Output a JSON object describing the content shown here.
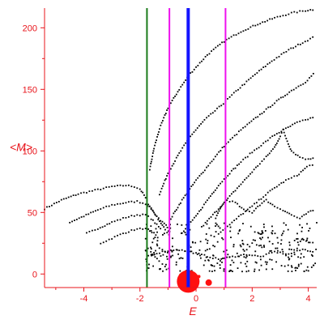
{
  "chart_data": {
    "type": "scatter",
    "title": "",
    "xlabel": "E",
    "ylabel": "<M>",
    "xlim": [
      -5.4,
      4.3
    ],
    "ylim": [
      -11,
      216
    ],
    "x_ticks": [
      -4,
      -2,
      0,
      2,
      4
    ],
    "x_tick_labels": [
      "-4",
      "-2",
      "0",
      "2",
      "4"
    ],
    "y_ticks": [
      0,
      50,
      100,
      150,
      200
    ],
    "y_tick_labels": [
      "0",
      "50",
      "100",
      "150",
      "200"
    ],
    "axis_color": "#e8141b",
    "point_color": "#000000",
    "vertical_lines": [
      {
        "x": -1.75,
        "color": "#1a7a1a"
      },
      {
        "x": -0.95,
        "color": "#ee10ee"
      },
      {
        "x": -0.28,
        "color": "#1414ff"
      },
      {
        "x": 1.05,
        "color": "#ee10ee"
      }
    ],
    "series": [
      {
        "values": [
          [
            -5.4,
            53
          ],
          [
            -4.8,
            60
          ],
          [
            -4.2,
            65
          ],
          [
            -3.6,
            68
          ],
          [
            -3.0,
            71
          ],
          [
            -2.5,
            72
          ],
          [
            -2.2,
            71
          ],
          [
            -2.0,
            69
          ],
          [
            -1.85,
            64
          ],
          [
            -1.7,
            57
          ],
          [
            -1.5,
            50
          ],
          [
            -1.3,
            43
          ],
          [
            -1.1,
            36
          ],
          [
            -0.9,
            30
          ]
        ]
      },
      {
        "values": [
          [
            -4.5,
            42
          ],
          [
            -4.0,
            47
          ],
          [
            -3.5,
            52
          ],
          [
            -3.0,
            56
          ],
          [
            -2.5,
            58
          ],
          [
            -2.1,
            59
          ],
          [
            -1.8,
            57
          ],
          [
            -1.6,
            53
          ],
          [
            -1.4,
            47
          ],
          [
            -1.2,
            42
          ],
          [
            -1.0,
            38
          ]
        ]
      },
      {
        "values": [
          [
            -3.9,
            33
          ],
          [
            -3.5,
            37
          ],
          [
            -3.0,
            42
          ],
          [
            -2.5,
            46
          ],
          [
            -2.1,
            48
          ],
          [
            -1.8,
            48
          ],
          [
            -1.6,
            45
          ],
          [
            -1.4,
            40
          ],
          [
            -1.2,
            35
          ]
        ]
      },
      {
        "values": [
          [
            -3.4,
            25
          ],
          [
            -3.0,
            29
          ],
          [
            -2.6,
            33
          ],
          [
            -2.2,
            36
          ],
          [
            -1.9,
            37
          ],
          [
            -1.7,
            36
          ],
          [
            -1.5,
            33
          ],
          [
            -1.3,
            28
          ]
        ]
      },
      {
        "values": [
          [
            -1.65,
            85
          ],
          [
            -1.5,
            102
          ],
          [
            -1.3,
            118
          ],
          [
            -1.0,
            135
          ],
          [
            -0.6,
            150
          ],
          [
            -0.2,
            163
          ],
          [
            0.4,
            178
          ],
          [
            1.0,
            189
          ],
          [
            1.6,
            197
          ],
          [
            2.2,
            203
          ],
          [
            2.8,
            208
          ],
          [
            3.4,
            212
          ],
          [
            3.9,
            214
          ],
          [
            4.25,
            215
          ]
        ]
      },
      {
        "values": [
          [
            -1.3,
            65
          ],
          [
            -1.0,
            82
          ],
          [
            -0.6,
            98
          ],
          [
            -0.2,
            112
          ],
          [
            0.3,
            125
          ],
          [
            0.9,
            137
          ],
          [
            1.5,
            150
          ],
          [
            2.1,
            162
          ],
          [
            2.7,
            173
          ],
          [
            3.3,
            182
          ],
          [
            3.8,
            188
          ],
          [
            4.25,
            193
          ]
        ]
      },
      {
        "values": [
          [
            -0.9,
            45
          ],
          [
            -0.5,
            60
          ],
          [
            0.0,
            76
          ],
          [
            0.5,
            90
          ],
          [
            1.0,
            104
          ],
          [
            1.6,
            117
          ],
          [
            2.2,
            128
          ],
          [
            2.8,
            139
          ],
          [
            3.4,
            149
          ],
          [
            3.9,
            156
          ],
          [
            4.25,
            164
          ]
        ]
      },
      {
        "values": [
          [
            -0.5,
            33
          ],
          [
            0.0,
            47
          ],
          [
            0.4,
            60
          ],
          [
            0.8,
            72
          ],
          [
            1.2,
            82
          ],
          [
            1.6,
            91
          ],
          [
            2.0,
            99
          ],
          [
            2.4,
            106
          ],
          [
            2.8,
            113
          ],
          [
            3.2,
            118
          ],
          [
            3.6,
            123
          ],
          [
            3.9,
            125
          ],
          [
            4.25,
            128
          ]
        ]
      },
      {
        "values": [
          [
            0.2,
            38
          ],
          [
            0.6,
            48
          ],
          [
            1.0,
            58
          ],
          [
            1.4,
            68
          ],
          [
            1.8,
            78
          ],
          [
            2.2,
            88
          ],
          [
            2.5,
            95
          ],
          [
            2.8,
            103
          ],
          [
            3.0,
            112
          ],
          [
            3.1,
            117
          ],
          [
            3.25,
            108
          ],
          [
            3.4,
            100
          ],
          [
            3.7,
            95
          ],
          [
            4.0,
            93
          ],
          [
            4.25,
            95
          ]
        ]
      },
      {
        "values": [
          [
            0.8,
            33
          ],
          [
            1.2,
            40
          ],
          [
            1.6,
            48
          ],
          [
            2.0,
            55
          ],
          [
            2.4,
            63
          ],
          [
            2.8,
            70
          ],
          [
            3.2,
            76
          ],
          [
            3.6,
            80
          ],
          [
            3.95,
            87
          ],
          [
            4.25,
            90
          ]
        ]
      },
      {
        "values": [
          [
            0.7,
            45
          ],
          [
            0.9,
            55
          ],
          [
            1.1,
            60
          ],
          [
            1.4,
            58
          ],
          [
            1.7,
            52
          ],
          [
            2.0,
            50
          ],
          [
            2.2,
            55
          ],
          [
            2.5,
            60
          ],
          [
            2.8,
            55
          ],
          [
            3.1,
            52
          ],
          [
            3.4,
            48
          ],
          [
            3.7,
            45
          ],
          [
            4.0,
            50
          ],
          [
            4.25,
            52
          ]
        ]
      },
      {
        "values": [
          [
            -1.7,
            15
          ],
          [
            -1.2,
            18
          ],
          [
            -0.7,
            20
          ],
          [
            -0.2,
            18
          ],
          [
            0.3,
            15
          ],
          [
            0.8,
            12
          ],
          [
            1.3,
            14
          ],
          [
            1.8,
            16
          ],
          [
            2.3,
            14
          ],
          [
            2.8,
            18
          ],
          [
            3.3,
            16
          ],
          [
            3.8,
            20
          ],
          [
            4.25,
            18
          ]
        ]
      }
    ],
    "noise": {
      "x_range": [
        -1.8,
        4.3
      ],
      "y_range": [
        2,
        42
      ],
      "count": 320
    },
    "red_cluster": [
      {
        "x": -0.28,
        "y": -6,
        "r": 14
      },
      {
        "x": 0.45,
        "y": -7,
        "r": 4
      },
      {
        "x": -0.55,
        "y": -1,
        "r": 2
      },
      {
        "x": 0.1,
        "y": -2,
        "r": 2
      }
    ],
    "red_cluster_color": "#ff1010"
  }
}
